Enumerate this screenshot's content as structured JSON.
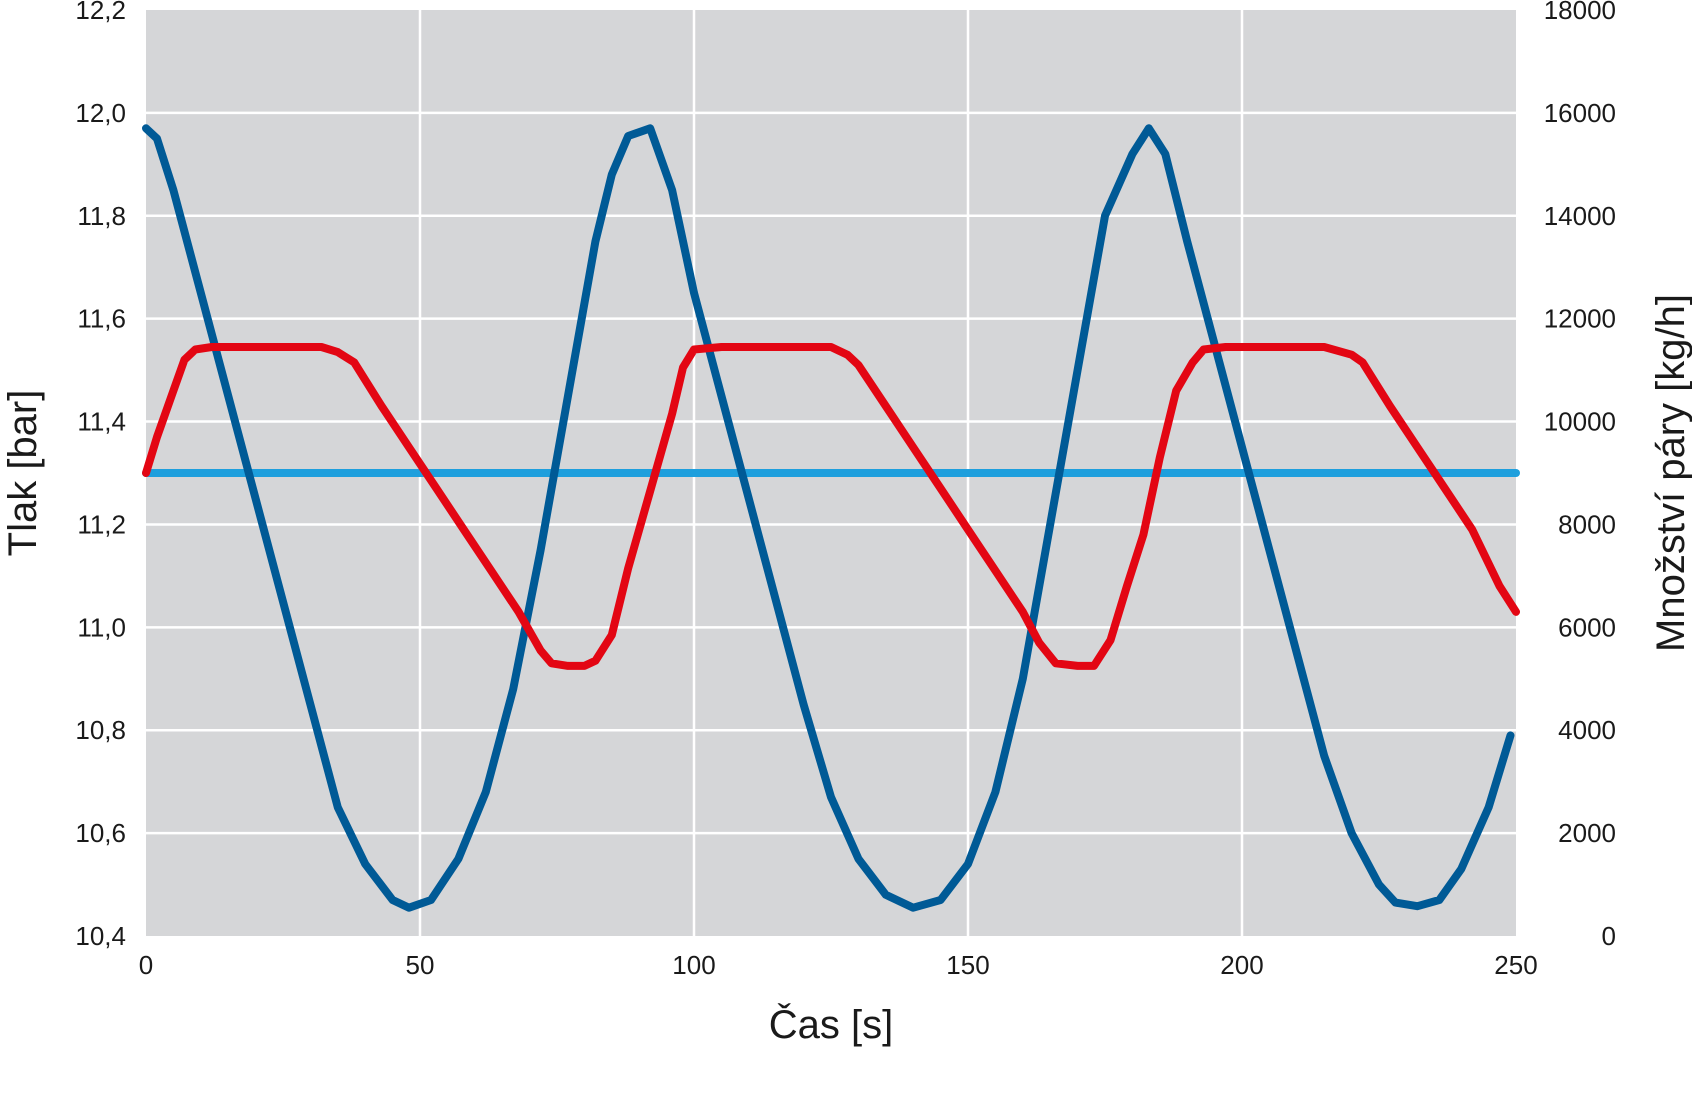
{
  "chart_data": {
    "type": "line",
    "xlabel": "Čas [s]",
    "ylabel_left": "Tlak [bar]",
    "ylabel_right": "Množství páry [kg/h]",
    "xlim": [
      0,
      250
    ],
    "ylim_left": [
      10.4,
      12.2
    ],
    "ylim_right": [
      0,
      18000
    ],
    "x_ticks": [
      "0",
      "50",
      "100",
      "150",
      "200",
      "250"
    ],
    "y_ticks_left": [
      "10,4",
      "10,6",
      "10,8",
      "11,0",
      "11,2",
      "11,4",
      "11,6",
      "11,8",
      "12,0",
      "12,2"
    ],
    "y_ticks_right": [
      "0",
      "2000",
      "4000",
      "6000",
      "8000",
      "10000",
      "12000",
      "14000",
      "16000",
      "18000"
    ],
    "grid": true,
    "plot_background": "#d5d6d8",
    "series": [
      {
        "color": "#005a96",
        "axis": "left",
        "points": [
          [
            0,
            11.97
          ],
          [
            2,
            11.95
          ],
          [
            5,
            11.85
          ],
          [
            10,
            11.65
          ],
          [
            15,
            11.45
          ],
          [
            20,
            11.25
          ],
          [
            25,
            11.05
          ],
          [
            30,
            10.85
          ],
          [
            35,
            10.65
          ],
          [
            40,
            10.54
          ],
          [
            45,
            10.47
          ],
          [
            48,
            10.455
          ],
          [
            52,
            10.47
          ],
          [
            57,
            10.55
          ],
          [
            62,
            10.68
          ],
          [
            67,
            10.88
          ],
          [
            72,
            11.15
          ],
          [
            77,
            11.45
          ],
          [
            82,
            11.75
          ],
          [
            85,
            11.88
          ],
          [
            88,
            11.955
          ],
          [
            92,
            11.97
          ],
          [
            96,
            11.85
          ],
          [
            100,
            11.65
          ],
          [
            105,
            11.45
          ],
          [
            110,
            11.25
          ],
          [
            115,
            11.05
          ],
          [
            120,
            10.85
          ],
          [
            125,
            10.67
          ],
          [
            130,
            10.55
          ],
          [
            135,
            10.48
          ],
          [
            140,
            10.455
          ],
          [
            145,
            10.47
          ],
          [
            150,
            10.54
          ],
          [
            155,
            10.68
          ],
          [
            160,
            10.9
          ],
          [
            165,
            11.2
          ],
          [
            170,
            11.5
          ],
          [
            175,
            11.8
          ],
          [
            180,
            11.92
          ],
          [
            183,
            11.97
          ],
          [
            186,
            11.92
          ],
          [
            190,
            11.75
          ],
          [
            195,
            11.55
          ],
          [
            200,
            11.35
          ],
          [
            205,
            11.15
          ],
          [
            210,
            10.95
          ],
          [
            215,
            10.75
          ],
          [
            220,
            10.6
          ],
          [
            225,
            10.5
          ],
          [
            228,
            10.465
          ],
          [
            232,
            10.458
          ],
          [
            236,
            10.47
          ],
          [
            240,
            10.53
          ],
          [
            245,
            10.65
          ],
          [
            249,
            10.79
          ]
        ]
      },
      {
        "color": "#e30613",
        "axis": "right",
        "points": [
          [
            0,
            9000
          ],
          [
            2,
            9700
          ],
          [
            5,
            10600
          ],
          [
            7,
            11200
          ],
          [
            9,
            11400
          ],
          [
            12,
            11450
          ],
          [
            20,
            11450
          ],
          [
            32,
            11450
          ],
          [
            35,
            11350
          ],
          [
            38,
            11150
          ],
          [
            43,
            10300
          ],
          [
            48,
            9500
          ],
          [
            53,
            8700
          ],
          [
            58,
            7900
          ],
          [
            63,
            7100
          ],
          [
            68,
            6300
          ],
          [
            72,
            5550
          ],
          [
            74,
            5300
          ],
          [
            77,
            5250
          ],
          [
            80,
            5250
          ],
          [
            82,
            5350
          ],
          [
            85,
            5850
          ],
          [
            88,
            7150
          ],
          [
            92,
            8650
          ],
          [
            96,
            10150
          ],
          [
            98,
            11050
          ],
          [
            100,
            11400
          ],
          [
            105,
            11450
          ],
          [
            115,
            11450
          ],
          [
            125,
            11450
          ],
          [
            128,
            11300
          ],
          [
            130,
            11100
          ],
          [
            135,
            10300
          ],
          [
            140,
            9500
          ],
          [
            145,
            8700
          ],
          [
            150,
            7900
          ],
          [
            155,
            7100
          ],
          [
            160,
            6300
          ],
          [
            163,
            5700
          ],
          [
            166,
            5300
          ],
          [
            170,
            5250
          ],
          [
            173,
            5250
          ],
          [
            176,
            5750
          ],
          [
            179,
            6800
          ],
          [
            182,
            7800
          ],
          [
            185,
            9300
          ],
          [
            188,
            10600
          ],
          [
            191,
            11150
          ],
          [
            193,
            11400
          ],
          [
            197,
            11450
          ],
          [
            210,
            11450
          ],
          [
            215,
            11450
          ],
          [
            220,
            11300
          ],
          [
            222,
            11150
          ],
          [
            227,
            10300
          ],
          [
            232,
            9500
          ],
          [
            237,
            8700
          ],
          [
            242,
            7900
          ],
          [
            247,
            6800
          ],
          [
            250,
            6300
          ]
        ]
      },
      {
        "color": "#1e9fdd",
        "axis": "left",
        "points": [
          [
            0,
            11.3
          ],
          [
            250,
            11.3
          ]
        ]
      }
    ]
  }
}
